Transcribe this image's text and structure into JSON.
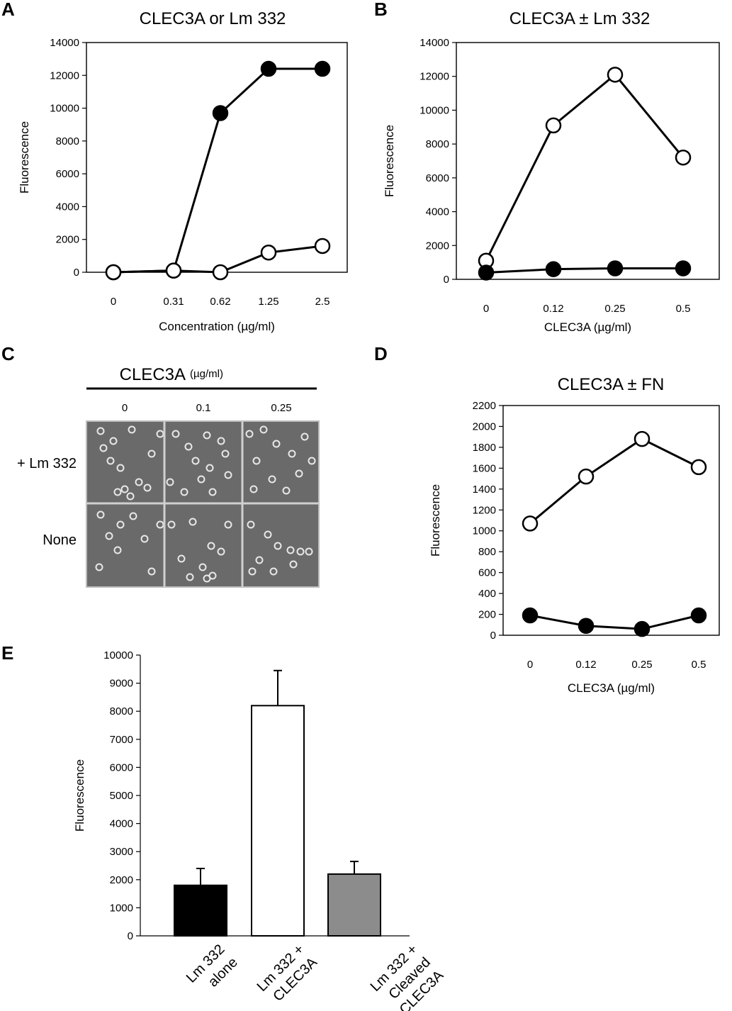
{
  "panels": {
    "A": {
      "letter": "A"
    },
    "B": {
      "letter": "B"
    },
    "C": {
      "letter": "C",
      "header": "CLEC3A",
      "header_unit": "(µg/ml)",
      "columns": [
        "0",
        "0.1",
        "0.25"
      ],
      "rows": [
        "+ Lm 332",
        "None"
      ]
    },
    "D": {
      "letter": "D"
    },
    "E": {
      "letter": "E"
    }
  },
  "chart_data": [
    {
      "id": "A",
      "type": "line",
      "title": "CLEC3A or Lm 332",
      "xlabel": "Concentration (µg/ml)",
      "ylabel": "Fluorescence",
      "categories": [
        "0",
        "0.31",
        "0.62",
        "1.25",
        "2.5"
      ],
      "ylim": [
        0,
        14000
      ],
      "yticks": [
        "0",
        "2000",
        "4000",
        "6000",
        "8000",
        "10000",
        "12000",
        "14000"
      ],
      "series": [
        {
          "marker": "filled",
          "values": [
            0,
            100,
            9700,
            12400,
            12400
          ]
        },
        {
          "marker": "open",
          "values": [
            0,
            100,
            0,
            1200,
            1600
          ]
        }
      ]
    },
    {
      "id": "B",
      "type": "line",
      "title": "CLEC3A ± Lm 332",
      "xlabel": "CLEC3A (µg/ml)",
      "ylabel": "Fluorescence",
      "categories": [
        "0",
        "0.12",
        "0.25",
        "0.5"
      ],
      "ylim": [
        0,
        14000
      ],
      "yticks": [
        "0",
        "2000",
        "4000",
        "6000",
        "8000",
        "10000",
        "12000",
        "14000"
      ],
      "series": [
        {
          "marker": "open",
          "values": [
            1100,
            9100,
            12100,
            7200
          ]
        },
        {
          "marker": "filled",
          "values": [
            400,
            600,
            650,
            650
          ]
        }
      ]
    },
    {
      "id": "D",
      "type": "line",
      "title": "CLEC3A ± FN",
      "xlabel": "CLEC3A (µg/ml)",
      "ylabel": "Fluorescence",
      "categories": [
        "0",
        "0.12",
        "0.25",
        "0.5"
      ],
      "ylim": [
        0,
        2200
      ],
      "yticks": [
        "0",
        "200",
        "400",
        "600",
        "800",
        "1000",
        "1200",
        "1400",
        "1600",
        "1800",
        "2000",
        "2200"
      ],
      "series": [
        {
          "marker": "open",
          "values": [
            1070,
            1520,
            1880,
            1610
          ]
        },
        {
          "marker": "filled",
          "values": [
            190,
            90,
            60,
            190
          ]
        }
      ]
    },
    {
      "id": "E",
      "type": "bar",
      "ylabel": "Fluorescence",
      "categories": [
        [
          "Lm 332",
          "alone"
        ],
        [
          "Lm 332 +",
          "CLEC3A"
        ],
        [
          "Lm 332 +",
          "Cleaved",
          "CLEC3A"
        ]
      ],
      "ylim": [
        0,
        10000
      ],
      "yticks": [
        "0",
        "1000",
        "2000",
        "3000",
        "4000",
        "5000",
        "6000",
        "7000",
        "8000",
        "9000",
        "10000"
      ],
      "values": [
        1800,
        8200,
        2200
      ],
      "errors": [
        600,
        1250,
        450
      ],
      "bar_colors": [
        "#000000",
        "#ffffff",
        "#8c8c8c"
      ]
    }
  ]
}
